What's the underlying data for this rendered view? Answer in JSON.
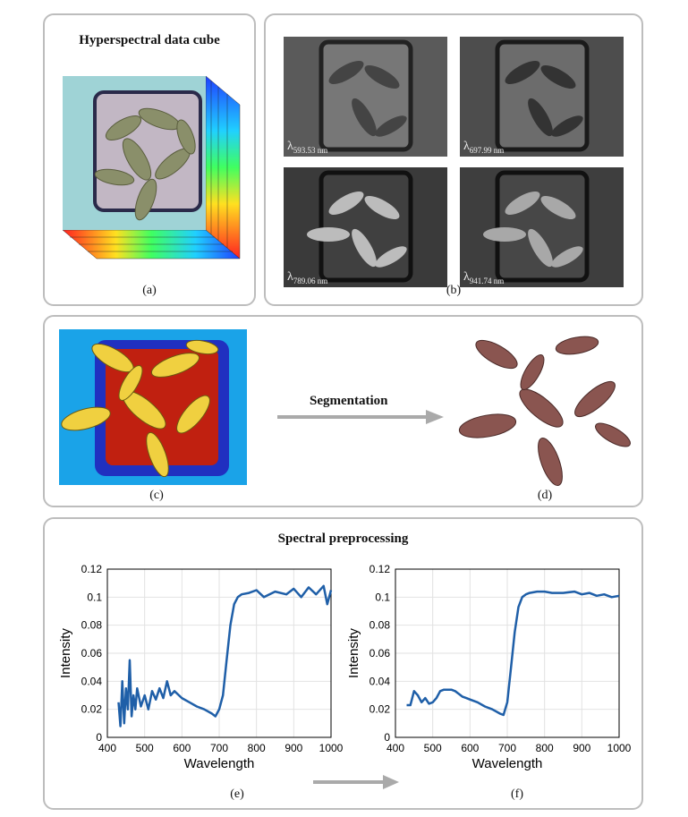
{
  "panel_a": {
    "title": "Hyperspectral data cube",
    "caption": "(a)"
  },
  "panel_b": {
    "caption": "(b)",
    "bands": [
      {
        "sym": "λ",
        "label": "593.53 nm"
      },
      {
        "sym": "λ",
        "label": "697.99 nm"
      },
      {
        "sym": "λ",
        "label": "789.06 nm"
      },
      {
        "sym": "λ",
        "label": "941.74 nm"
      }
    ]
  },
  "panel_cd": {
    "arrow_label": "Segmentation",
    "caption_c": "(c)",
    "caption_d": "(d)"
  },
  "panel_ef": {
    "title": "Spectral preprocessing",
    "caption_e": "(e)",
    "caption_f": "(f)"
  },
  "chart_data": [
    {
      "type": "line",
      "name": "raw-spectrum",
      "xlabel": "Wavelength",
      "ylabel": "Intensity",
      "xlim": [
        400,
        1000
      ],
      "ylim": [
        0,
        0.12
      ],
      "xticks": [
        "400",
        "500",
        "600",
        "700",
        "800",
        "900",
        "1000"
      ],
      "yticks": [
        "0",
        "0.02",
        "0.04",
        "0.06",
        "0.08",
        "0.1",
        "0.12"
      ],
      "x": [
        430,
        435,
        440,
        445,
        450,
        455,
        460,
        465,
        470,
        475,
        480,
        490,
        500,
        510,
        520,
        530,
        540,
        550,
        560,
        570,
        580,
        600,
        620,
        640,
        660,
        680,
        690,
        700,
        710,
        720,
        730,
        740,
        750,
        760,
        780,
        800,
        820,
        850,
        880,
        900,
        920,
        940,
        960,
        980,
        990,
        1000
      ],
      "y": [
        0.025,
        0.008,
        0.04,
        0.01,
        0.035,
        0.02,
        0.055,
        0.015,
        0.03,
        0.02,
        0.035,
        0.022,
        0.03,
        0.02,
        0.033,
        0.027,
        0.035,
        0.028,
        0.04,
        0.03,
        0.033,
        0.028,
        0.025,
        0.022,
        0.02,
        0.017,
        0.015,
        0.02,
        0.03,
        0.055,
        0.08,
        0.095,
        0.1,
        0.102,
        0.103,
        0.105,
        0.1,
        0.104,
        0.102,
        0.106,
        0.1,
        0.107,
        0.102,
        0.108,
        0.095,
        0.105
      ]
    },
    {
      "type": "line",
      "name": "smoothed-spectrum",
      "xlabel": "Wavelength",
      "ylabel": "Intensity",
      "xlim": [
        400,
        1000
      ],
      "ylim": [
        0,
        0.12
      ],
      "xticks": [
        "400",
        "500",
        "600",
        "700",
        "800",
        "900",
        "1000"
      ],
      "yticks": [
        "0",
        "0.02",
        "0.04",
        "0.06",
        "0.08",
        "0.1",
        "0.12"
      ],
      "x": [
        430,
        440,
        450,
        460,
        470,
        480,
        490,
        500,
        510,
        520,
        530,
        540,
        550,
        560,
        570,
        580,
        590,
        600,
        620,
        640,
        660,
        680,
        690,
        700,
        710,
        720,
        730,
        740,
        750,
        760,
        780,
        800,
        820,
        850,
        880,
        900,
        920,
        940,
        960,
        980,
        1000
      ],
      "y": [
        0.023,
        0.023,
        0.033,
        0.03,
        0.025,
        0.028,
        0.024,
        0.025,
        0.028,
        0.033,
        0.034,
        0.034,
        0.034,
        0.033,
        0.031,
        0.029,
        0.028,
        0.027,
        0.025,
        0.022,
        0.02,
        0.017,
        0.016,
        0.025,
        0.05,
        0.075,
        0.093,
        0.1,
        0.102,
        0.103,
        0.104,
        0.104,
        0.103,
        0.103,
        0.104,
        0.102,
        0.103,
        0.101,
        0.102,
        0.1,
        0.101
      ]
    }
  ]
}
